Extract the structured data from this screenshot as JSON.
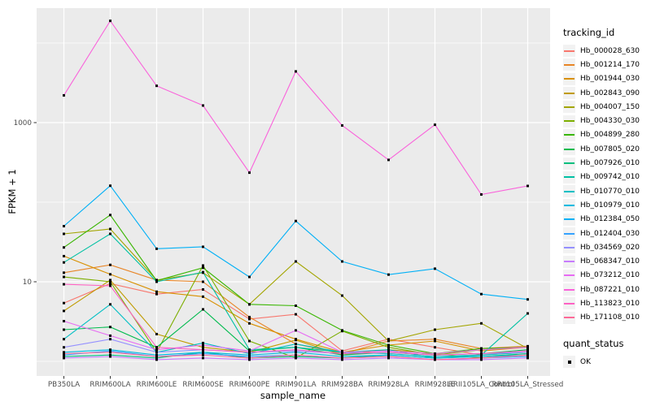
{
  "chart_data": {
    "type": "line",
    "title": "",
    "xlabel": "sample_name",
    "ylabel": "FPKM + 1",
    "y_scale": "log10",
    "y_ticks": [
      10,
      1000
    ],
    "y_tick_labels": [
      "10",
      "1000"
    ],
    "y_minor": [
      1,
      100,
      10000
    ],
    "ylim_log": [
      -0.2,
      4.45
    ],
    "grid": true,
    "panel_bg": "#EBEBEB",
    "grid_color": "#FFFFFF",
    "point_color": "#000000",
    "point_shape": "square",
    "categories": [
      "PB350LA",
      "RRIM600LA",
      "RRIM600LE",
      "RRIM600SE",
      "RRIM600PE",
      "RRIM901LA",
      "RRIM928BA",
      "RRIM928LA",
      "RRIM928LE",
      "RRII105LA_Control",
      "RRII105LA_Stressed"
    ],
    "series": [
      {
        "name": "Hb_000028_630",
        "color": "#F8766D",
        "values": [
          5.4,
          9.5,
          7.0,
          8.0,
          3.4,
          3.9,
          1.35,
          1.9,
          1.5,
          1.2,
          1.3
        ]
      },
      {
        "name": "Hb_001214_170",
        "color": "#E88526",
        "values": [
          13,
          16.3,
          10.5,
          10.0,
          3.6,
          1.65,
          1.25,
          1.8,
          1.9,
          1.45,
          1.55
        ]
      },
      {
        "name": "Hb_001944_030",
        "color": "#D89000",
        "values": [
          21,
          12.4,
          7.5,
          6.5,
          3.0,
          1.9,
          1.3,
          1.6,
          1.8,
          1.35,
          1.5
        ]
      },
      {
        "name": "Hb_002843_090",
        "color": "#C09B00",
        "values": [
          4.3,
          10.5,
          2.2,
          1.5,
          1.3,
          1.85,
          1.2,
          1.4,
          1.25,
          1.1,
          1.2
        ]
      },
      {
        "name": "Hb_004007_150",
        "color": "#A3A500",
        "values": [
          40,
          46,
          10.5,
          13,
          5.2,
          18,
          6.7,
          1.8,
          2.5,
          3.0,
          1.45
        ]
      },
      {
        "name": "Hb_004330_030",
        "color": "#7CAE00",
        "values": [
          11.5,
          10,
          1.3,
          16,
          1.8,
          1.1,
          2.4,
          1.5,
          1.2,
          1.4,
          1.5
        ]
      },
      {
        "name": "Hb_004899_280",
        "color": "#39B600",
        "values": [
          27,
          69,
          10.3,
          15,
          5.2,
          5.0,
          2.45,
          1.6,
          1.25,
          1.45,
          1.5
        ]
      },
      {
        "name": "Hb_007805_020",
        "color": "#00BB4E",
        "values": [
          2.5,
          2.7,
          1.5,
          4.5,
          1.35,
          1.5,
          1.2,
          1.3,
          1.2,
          1.25,
          1.4
        ]
      },
      {
        "name": "Hb_007926_010",
        "color": "#00BF7D",
        "values": [
          1.15,
          1.2,
          1.1,
          1.3,
          1.1,
          1.15,
          1.1,
          1.2,
          1.1,
          1.15,
          1.25
        ]
      },
      {
        "name": "Hb_009742_010",
        "color": "#00C1A3",
        "values": [
          17.5,
          40,
          10,
          13.2,
          1.4,
          1.5,
          1.3,
          1.4,
          1.1,
          1.2,
          4.0
        ]
      },
      {
        "name": "Hb_010770_010",
        "color": "#00BFC4",
        "values": [
          1.9,
          5.2,
          1.3,
          1.7,
          1.25,
          1.65,
          1.3,
          1.25,
          1.15,
          1.2,
          1.3
        ]
      },
      {
        "name": "Hb_010979_010",
        "color": "#00BAE0",
        "values": [
          1.3,
          1.4,
          1.2,
          1.3,
          1.2,
          1.3,
          1.15,
          1.2,
          1.1,
          1.15,
          1.2
        ]
      },
      {
        "name": "Hb_012384_050",
        "color": "#00B0F6",
        "values": [
          50,
          161,
          26,
          27.5,
          11.5,
          58,
          18,
          12.3,
          14.6,
          7.0,
          6.0
        ]
      },
      {
        "name": "Hb_012404_030",
        "color": "#35A2FF",
        "values": [
          1.2,
          1.35,
          1.15,
          1.25,
          1.15,
          1.2,
          1.1,
          1.15,
          1.05,
          1.1,
          1.15
        ]
      },
      {
        "name": "Hb_034569_020",
        "color": "#9590FF",
        "values": [
          1.5,
          1.9,
          1.3,
          1.4,
          1.3,
          1.35,
          1.25,
          1.3,
          1.2,
          1.25,
          1.3
        ]
      },
      {
        "name": "Hb_068347_010",
        "color": "#C77CFF",
        "values": [
          1.1,
          1.15,
          1.05,
          1.1,
          1.05,
          1.1,
          1.05,
          1.1,
          1.05,
          1.05,
          1.1
        ]
      },
      {
        "name": "Hb_073212_010",
        "color": "#E76BF3",
        "values": [
          3.2,
          2.1,
          1.4,
          1.6,
          1.35,
          2.45,
          1.3,
          1.35,
          1.25,
          1.4,
          1.5
        ]
      },
      {
        "name": "Hb_087221_010",
        "color": "#FA62DB",
        "values": [
          2200,
          19000,
          2900,
          1640,
          235,
          4400,
          920,
          340,
          940,
          125,
          160
        ]
      },
      {
        "name": "Hb_113823_010",
        "color": "#FF61C3",
        "values": [
          9.3,
          8.9,
          1.5,
          1.4,
          1.3,
          1.4,
          1.25,
          1.3,
          1.2,
          1.25,
          1.35
        ]
      },
      {
        "name": "Hb_171108_010",
        "color": "#FF6A98",
        "values": [
          1.25,
          1.3,
          1.15,
          1.2,
          1.1,
          1.2,
          1.1,
          1.15,
          1.05,
          1.1,
          1.2
        ]
      }
    ],
    "legend": {
      "color_title": "tracking_id",
      "shape_title": "quant_status",
      "shape_items": [
        {
          "label": "OK"
        }
      ],
      "position": "right"
    }
  }
}
